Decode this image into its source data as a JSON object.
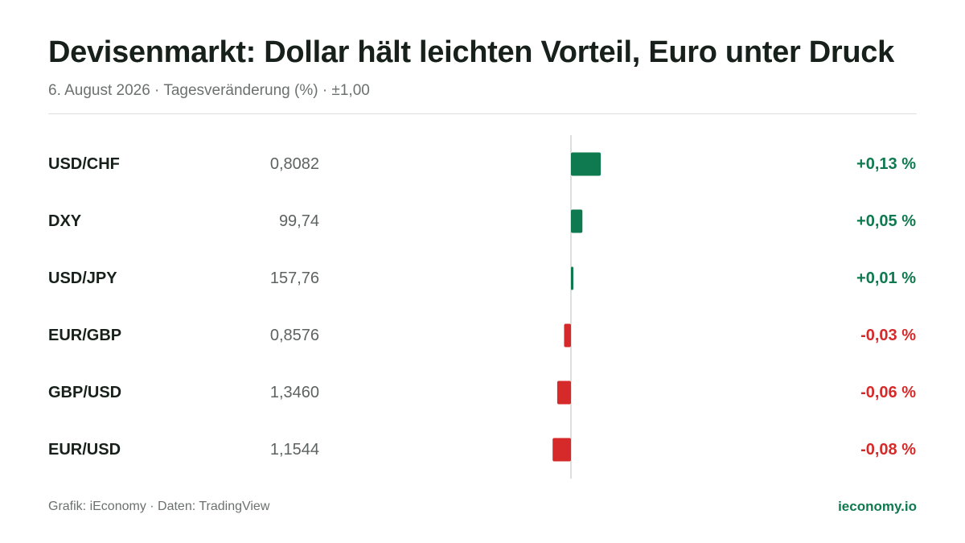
{
  "header": {
    "title": "Devisenmarkt: Dollar hält leichten Vorteil, Euro unter Druck",
    "subtitle": "6. August 2026 · Tagesveränderung (%) · ±1,00"
  },
  "footer": {
    "source": "Grafik: iEconomy · Daten: TradingView",
    "brand": "ieconomy.io"
  },
  "colors": {
    "positive": "#0f7a4f",
    "negative": "#d62a2a",
    "brand": "#0f7a4f",
    "axis": "#dcdfdd"
  },
  "chart_data": {
    "type": "bar",
    "orientation": "horizontal",
    "xlim": [
      -1.0,
      1.0
    ],
    "categories": [
      "USD/CHF",
      "DXY",
      "USD/JPY",
      "EUR/GBP",
      "GBP/USD",
      "EUR/USD"
    ],
    "rates": [
      "0,8082",
      "99,74",
      "157,76",
      "0,8576",
      "1,3460",
      "1,1544"
    ],
    "values": [
      0.13,
      0.05,
      0.01,
      -0.03,
      -0.06,
      -0.08
    ],
    "value_labels": [
      "+0,13 %",
      "+0,05 %",
      "+0,01 %",
      "-0,03 %",
      "-0,06 %",
      "-0,08 %"
    ]
  }
}
